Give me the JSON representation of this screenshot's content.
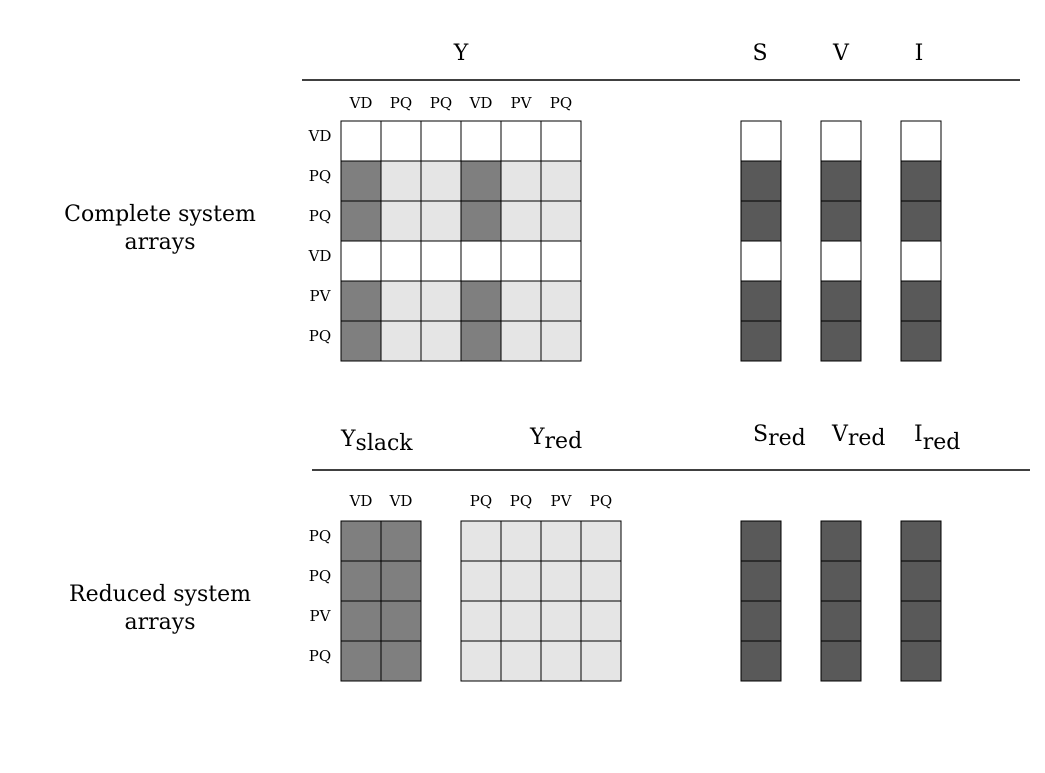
{
  "colors": {
    "white": "#ffffff",
    "light": "#e5e5e5",
    "medium": "#7f7f7f",
    "dark": "#595959",
    "stroke": "#000000"
  },
  "complete": {
    "label_line1": "Complete system",
    "label_line2": "arrays",
    "headers": {
      "Y": "Y",
      "S": "S",
      "V": "V",
      "I": "I"
    },
    "col_labels": [
      "VD",
      "PQ",
      "PQ",
      "VD",
      "PV",
      "PQ"
    ],
    "row_labels": [
      "VD",
      "PQ",
      "PQ",
      "VD",
      "PV",
      "PQ"
    ],
    "Y_cells": [
      [
        "white",
        "white",
        "white",
        "white",
        "white",
        "white"
      ],
      [
        "medium",
        "light",
        "light",
        "medium",
        "light",
        "light"
      ],
      [
        "medium",
        "light",
        "light",
        "medium",
        "light",
        "light"
      ],
      [
        "white",
        "white",
        "white",
        "white",
        "white",
        "white"
      ],
      [
        "medium",
        "light",
        "light",
        "medium",
        "light",
        "light"
      ],
      [
        "medium",
        "light",
        "light",
        "medium",
        "light",
        "light"
      ]
    ],
    "vector_cells": [
      "white",
      "dark",
      "dark",
      "white",
      "dark",
      "dark"
    ]
  },
  "reduced": {
    "label_line1": "Reduced system",
    "label_line2": "arrays",
    "headers": {
      "Yslack": {
        "base": "Y",
        "sub": "slack"
      },
      "Yred": {
        "base": "Y",
        "sub": "red"
      },
      "Sred": {
        "base": "S",
        "sub": "red"
      },
      "Vred": {
        "base": "V",
        "sub": "red"
      },
      "Ired": {
        "base": "I",
        "sub": "red"
      }
    },
    "slack_col_labels": [
      "VD",
      "VD"
    ],
    "red_col_labels": [
      "PQ",
      "PQ",
      "PV",
      "PQ"
    ],
    "row_labels": [
      "PQ",
      "PQ",
      "PV",
      "PQ"
    ],
    "slack_cell": "medium",
    "red_cell": "light",
    "vector_cell": "dark"
  }
}
